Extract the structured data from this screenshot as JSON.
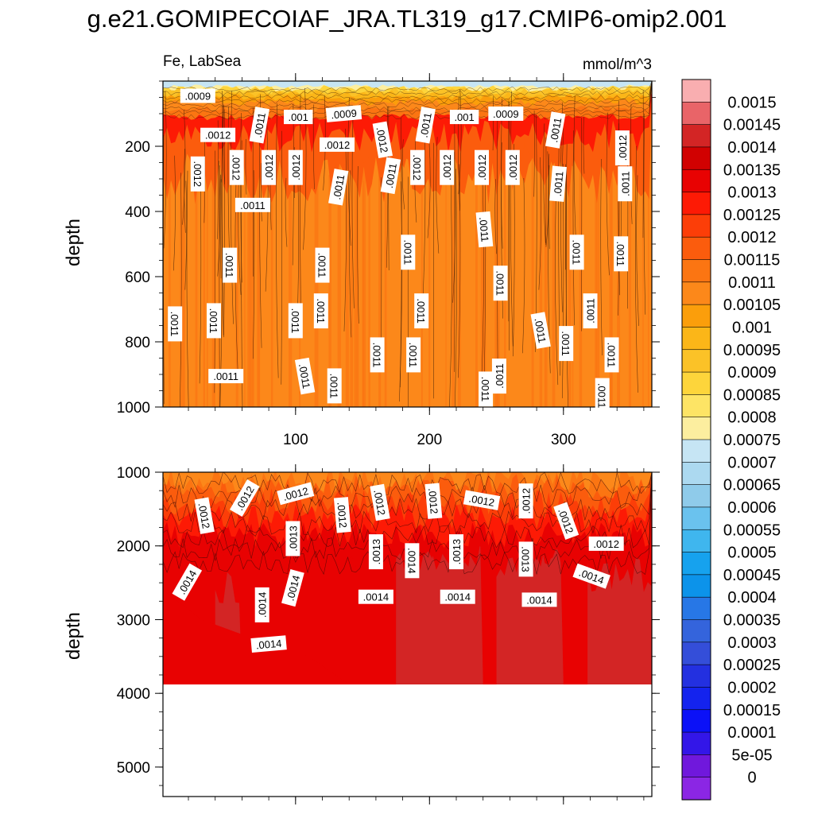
{
  "title": "g.e21.GOMIPECOIAF_JRA.TL319_g17.CMIP6-omip2.001",
  "chart_data": [
    {
      "type": "contour",
      "panel": "top",
      "left_string": "Fe, LabSea",
      "right_string": "mmol/m^3",
      "xlabel": "",
      "ylabel": "depth",
      "xlim": [
        1,
        366
      ],
      "ylim": [
        1000,
        0
      ],
      "xticks": [
        100,
        200,
        300
      ],
      "yticks": [
        200,
        400,
        600,
        800,
        1000
      ],
      "surface_band": {
        "value": 0.00072,
        "depth_to": 20
      },
      "mixed_layer": {
        "value": 0.0012,
        "depth_from": 40,
        "depth_to": 260
      },
      "interior_value": 0.00108,
      "contour_labels": [
        {
          "text": ".0009",
          "x": 27,
          "y": 45,
          "angle": 0
        },
        {
          "text": ".0012",
          "x": 42,
          "y": 165,
          "angle": 0
        },
        {
          "text": ".0011",
          "x": 73,
          "y": 135,
          "angle": -80
        },
        {
          "text": ".001",
          "x": 102,
          "y": 110,
          "angle": 0
        },
        {
          "text": ".0009",
          "x": 136,
          "y": 100,
          "angle": -5
        },
        {
          "text": ".0012",
          "x": 165,
          "y": 180,
          "angle": 80
        },
        {
          "text": ".0011",
          "x": 197,
          "y": 135,
          "angle": -80
        },
        {
          "text": ".001",
          "x": 226,
          "y": 110,
          "angle": 0
        },
        {
          "text": ".0009",
          "x": 257,
          "y": 100,
          "angle": 0
        },
        {
          "text": ".0011",
          "x": 294,
          "y": 150,
          "angle": -80
        },
        {
          "text": ".0012",
          "x": 344,
          "y": 205,
          "angle": -90
        },
        {
          "text": ".0012",
          "x": 27,
          "y": 285,
          "angle": 90
        },
        {
          "text": ".0012",
          "x": 56,
          "y": 265,
          "angle": 90
        },
        {
          "text": ".0012",
          "x": 80,
          "y": 265,
          "angle": -90
        },
        {
          "text": ".0012",
          "x": 100,
          "y": 265,
          "angle": -90
        },
        {
          "text": ".0012",
          "x": 131,
          "y": 195,
          "angle": 0
        },
        {
          "text": ".0011",
          "x": 132,
          "y": 325,
          "angle": -80
        },
        {
          "text": ".0011",
          "x": 171,
          "y": 290,
          "angle": -80
        },
        {
          "text": ".0012",
          "x": 191,
          "y": 265,
          "angle": 90
        },
        {
          "text": ".0012",
          "x": 213,
          "y": 265,
          "angle": -90
        },
        {
          "text": ".0012",
          "x": 239,
          "y": 265,
          "angle": -90
        },
        {
          "text": ".0012",
          "x": 262,
          "y": 265,
          "angle": -90
        },
        {
          "text": ".0011",
          "x": 296,
          "y": 315,
          "angle": -85
        },
        {
          "text": ".0011",
          "x": 346,
          "y": 315,
          "angle": -90
        },
        {
          "text": ".0011",
          "x": 68,
          "y": 380,
          "angle": 0
        },
        {
          "text": ".0011",
          "x": 241,
          "y": 455,
          "angle": 85
        },
        {
          "text": ".0011",
          "x": 51,
          "y": 565,
          "angle": 90
        },
        {
          "text": ".0011",
          "x": 120,
          "y": 565,
          "angle": 90
        },
        {
          "text": ".0011",
          "x": 184,
          "y": 525,
          "angle": 90
        },
        {
          "text": ".0011",
          "x": 310,
          "y": 525,
          "angle": 90
        },
        {
          "text": ".0011",
          "x": 343,
          "y": 530,
          "angle": 90
        },
        {
          "text": ".0011",
          "x": 253,
          "y": 620,
          "angle": 90
        },
        {
          "text": ".0011",
          "x": 194,
          "y": 705,
          "angle": 90
        },
        {
          "text": ".0011",
          "x": 320,
          "y": 705,
          "angle": -90
        },
        {
          "text": ".0011",
          "x": 10,
          "y": 745,
          "angle": 90
        },
        {
          "text": ".0011",
          "x": 39,
          "y": 735,
          "angle": 90
        },
        {
          "text": ".0011",
          "x": 100,
          "y": 735,
          "angle": 90
        },
        {
          "text": ".0011",
          "x": 119,
          "y": 705,
          "angle": 90
        },
        {
          "text": ".0011",
          "x": 283,
          "y": 765,
          "angle": 80
        },
        {
          "text": ".0011",
          "x": 302,
          "y": 805,
          "angle": 90
        },
        {
          "text": ".0011",
          "x": 161,
          "y": 840,
          "angle": 90
        },
        {
          "text": ".0011",
          "x": 188,
          "y": 840,
          "angle": 90
        },
        {
          "text": ".0011",
          "x": 336,
          "y": 840,
          "angle": 90
        },
        {
          "text": ".0011",
          "x": 107,
          "y": 905,
          "angle": 80
        },
        {
          "text": ".0011",
          "x": 129,
          "y": 935,
          "angle": 90
        },
        {
          "text": ".0011",
          "x": 48,
          "y": 905,
          "angle": 0
        },
        {
          "text": ".0011",
          "x": 242,
          "y": 945,
          "angle": 90
        },
        {
          "text": ".0011",
          "x": 252,
          "y": 905,
          "angle": -90
        },
        {
          "text": ".0011",
          "x": 329,
          "y": 965,
          "angle": 90
        }
      ]
    },
    {
      "type": "contour",
      "panel": "bottom",
      "xlabel": "",
      "ylabel": "depth",
      "xlim": [
        1,
        366
      ],
      "ylim": [
        5400,
        1000
      ],
      "yticks": [
        1000,
        2000,
        3000,
        4000,
        5000
      ],
      "data_max_depth": 3880,
      "top_value": 0.00115,
      "deep_values": [
        0.00135,
        0.00145
      ],
      "contour_labels": [
        {
          "text": ".0012",
          "x": 32,
          "y": 1590,
          "angle": 80
        },
        {
          "text": ".0012",
          "x": 62,
          "y": 1350,
          "angle": -60
        },
        {
          "text": ".0012",
          "x": 100,
          "y": 1290,
          "angle": -15
        },
        {
          "text": ".0012",
          "x": 135,
          "y": 1580,
          "angle": 85
        },
        {
          "text": ".0012",
          "x": 163,
          "y": 1410,
          "angle": 80
        },
        {
          "text": ".0012",
          "x": 203,
          "y": 1390,
          "angle": 85
        },
        {
          "text": ".0012",
          "x": 239,
          "y": 1380,
          "angle": 10
        },
        {
          "text": ".0012",
          "x": 272,
          "y": 1390,
          "angle": -90
        },
        {
          "text": ".0012",
          "x": 302,
          "y": 1660,
          "angle": 70
        },
        {
          "text": ".0012",
          "x": 332,
          "y": 1970,
          "angle": 0
        },
        {
          "text": ".0013",
          "x": 98,
          "y": 1900,
          "angle": -90
        },
        {
          "text": ".0013",
          "x": 160,
          "y": 2080,
          "angle": -90
        },
        {
          "text": ".0013",
          "x": 220,
          "y": 2080,
          "angle": -90
        },
        {
          "text": ".0013",
          "x": 272,
          "y": 2180,
          "angle": 90
        },
        {
          "text": ".0014",
          "x": 19,
          "y": 2490,
          "angle": -60
        },
        {
          "text": ".0014",
          "x": 98,
          "y": 2570,
          "angle": -75
        },
        {
          "text": ".0014",
          "x": 75,
          "y": 2800,
          "angle": -90
        },
        {
          "text": ".0014",
          "x": 187,
          "y": 2200,
          "angle": 90
        },
        {
          "text": ".0014",
          "x": 160,
          "y": 2690,
          "angle": 0
        },
        {
          "text": ".0014",
          "x": 221,
          "y": 2690,
          "angle": 0
        },
        {
          "text": ".0014",
          "x": 282,
          "y": 2730,
          "angle": 0
        },
        {
          "text": ".0014",
          "x": 321,
          "y": 2410,
          "angle": 20
        },
        {
          "text": ".0014",
          "x": 80,
          "y": 3330,
          "angle": -5
        }
      ]
    }
  ],
  "colorbar": {
    "labels": [
      "0.0015",
      "0.00145",
      "0.0014",
      "0.00135",
      "0.0013",
      "0.00125",
      "0.0012",
      "0.00115",
      "0.0011",
      "0.00105",
      "0.001",
      "0.00095",
      "0.0009",
      "0.00085",
      "0.0008",
      "0.00075",
      "0.0007",
      "0.00065",
      "0.0006",
      "0.00055",
      "0.0005",
      "0.00045",
      "0.0004",
      "0.00035",
      "0.0003",
      "0.00025",
      "0.0002",
      "0.00015",
      "0.0001",
      "5e-05",
      "0"
    ],
    "colors": [
      "#f9aeb0",
      "#e96468",
      "#d32525",
      "#d10101",
      "#e80202",
      "#fd1a05",
      "#fc3e08",
      "#fb5c0d",
      "#fb7512",
      "#fc881a",
      "#fb9e0b",
      "#fbb618",
      "#fbc227",
      "#fdd53b",
      "#fde465",
      "#fcee9f",
      "#c6e5f4",
      "#acd9f0",
      "#8fcbea",
      "#6ac2ee",
      "#3fb6ee",
      "#16a2ee",
      "#0c93ea",
      "#2777e6",
      "#3464dc",
      "#344ed9",
      "#2330e0",
      "#1423ee",
      "#0b11f7",
      "#3316e8",
      "#7018dc",
      "#8b26e4"
    ]
  }
}
